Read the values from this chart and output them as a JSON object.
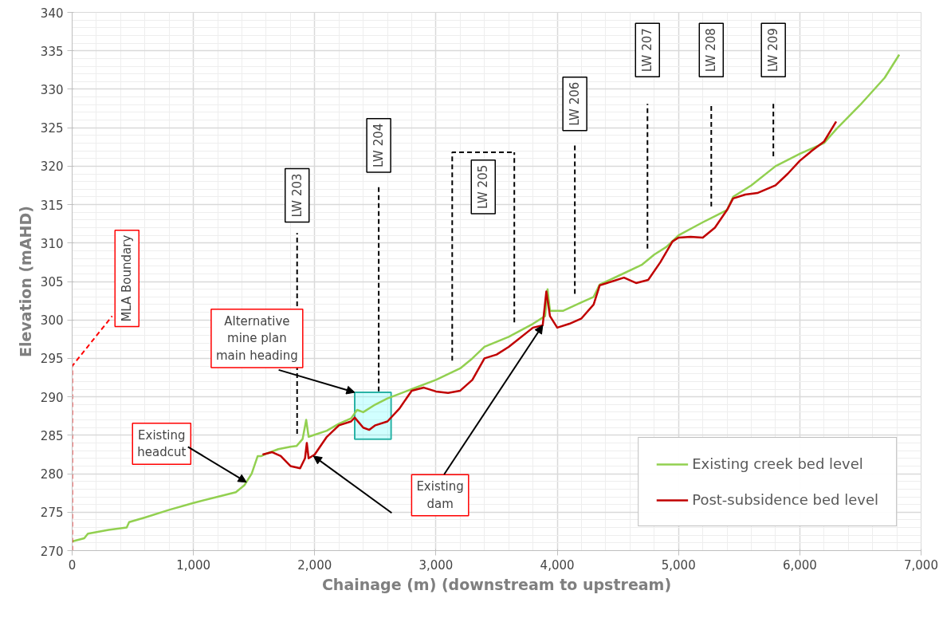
{
  "chart_data": {
    "type": "line",
    "xlabel": "Chainage (m) (downstream to upstream)",
    "ylabel": "Elevation (mAHD)",
    "xlim": [
      0,
      7000
    ],
    "ylim": [
      270,
      340
    ],
    "xticks": [
      {
        "value": 0,
        "label": "0"
      },
      {
        "value": 1000,
        "label": "1,000"
      },
      {
        "value": 2000,
        "label": "2,000"
      },
      {
        "value": 3000,
        "label": "3,000"
      },
      {
        "value": 4000,
        "label": "4,000"
      },
      {
        "value": 5000,
        "label": "5,000"
      },
      {
        "value": 6000,
        "label": "6,000"
      },
      {
        "value": 7000,
        "label": "7,000"
      }
    ],
    "yticks": [
      270,
      275,
      280,
      285,
      290,
      295,
      300,
      305,
      310,
      315,
      320,
      325,
      330,
      335,
      340
    ],
    "grid": true,
    "legend": "bottom right",
    "line_style": "solid",
    "marker": "none",
    "series": [
      {
        "name": "Existing creek bed level",
        "color": "#92d050",
        "x": [
          0,
          100,
          130,
          300,
          450,
          470,
          600,
          800,
          1000,
          1200,
          1350,
          1420,
          1480,
          1530,
          1560,
          1600,
          1700,
          1800,
          1850,
          1900,
          1930,
          1950,
          2100,
          2200,
          2300,
          2350,
          2400,
          2500,
          2600,
          2800,
          3000,
          3200,
          3300,
          3400,
          3600,
          3800,
          3900,
          3920,
          3940,
          4050,
          4200,
          4300,
          4350,
          4500,
          4700,
          4800,
          4900,
          5000,
          5200,
          5300,
          5400,
          5450,
          5600,
          5800,
          6000,
          6200,
          6300,
          6500,
          6700,
          6820
        ],
        "values": [
          271.2,
          271.6,
          272.2,
          272.7,
          273.0,
          273.7,
          274.3,
          275.3,
          276.2,
          277.0,
          277.6,
          278.5,
          280.0,
          282.3,
          282.3,
          282.6,
          283.2,
          283.5,
          283.6,
          284.5,
          287.0,
          284.8,
          285.6,
          286.5,
          287.2,
          288.3,
          288.0,
          289.0,
          289.8,
          291.0,
          292.2,
          293.7,
          295.0,
          296.5,
          297.8,
          299.5,
          300.5,
          304.0,
          301.2,
          301.2,
          302.3,
          303.0,
          304.6,
          305.7,
          307.2,
          308.5,
          309.5,
          311.0,
          312.7,
          313.5,
          314.3,
          316.0,
          317.5,
          320.0,
          321.6,
          323.0,
          324.8,
          328.0,
          331.5,
          334.5
        ]
      },
      {
        "name": "Post-subsidence bed level",
        "color": "#c00000",
        "x": [
          1570,
          1650,
          1720,
          1800,
          1880,
          1920,
          1935,
          1950,
          2000,
          2100,
          2200,
          2300,
          2330,
          2400,
          2450,
          2500,
          2600,
          2700,
          2800,
          2900,
          3000,
          3100,
          3200,
          3300,
          3400,
          3500,
          3600,
          3800,
          3880,
          3910,
          3940,
          4000,
          4100,
          4200,
          4300,
          4350,
          4450,
          4550,
          4650,
          4750,
          4850,
          4950,
          5000,
          5100,
          5200,
          5300,
          5400,
          5450,
          5550,
          5650,
          5800,
          5900,
          6000,
          6100,
          6200,
          6300
        ],
        "values": [
          282.5,
          282.8,
          282.3,
          281.0,
          280.7,
          282.0,
          284.0,
          282.0,
          282.5,
          284.8,
          286.3,
          286.8,
          287.3,
          286.0,
          285.7,
          286.3,
          286.8,
          288.5,
          290.8,
          291.2,
          290.7,
          290.5,
          290.8,
          292.2,
          295.0,
          295.5,
          296.5,
          299.0,
          299.3,
          303.7,
          300.5,
          299.0,
          299.5,
          300.2,
          302.0,
          304.5,
          305.0,
          305.5,
          304.8,
          305.2,
          307.5,
          310.2,
          310.7,
          310.8,
          310.7,
          312.0,
          314.3,
          315.8,
          316.3,
          316.5,
          317.5,
          319.0,
          320.7,
          322.0,
          323.2,
          325.8
        ]
      }
    ],
    "ref_lines": [
      {
        "axis": "x",
        "value": 0,
        "label": "MLA Boundary",
        "color": "#ff0000",
        "line_style": "dashed"
      },
      {
        "axis": "x",
        "value": 1855,
        "label": "LW 203",
        "color": "#000000",
        "line_style": "dashed"
      },
      {
        "axis": "x",
        "value": 2528,
        "label": "LW 204",
        "color": "#000000",
        "line_style": "dashed"
      },
      {
        "axis": "x",
        "value": 3134,
        "label": "LW 205",
        "color": "#000000",
        "line_style": "dashed"
      },
      {
        "axis": "x",
        "value": 3646,
        "label": null,
        "color": "#000000",
        "line_style": "dashed"
      },
      {
        "axis": "x",
        "value": 4145,
        "label": "LW 206",
        "color": "#000000",
        "line_style": "dashed"
      },
      {
        "axis": "x",
        "value": 4744,
        "label": "LW 207",
        "color": "#000000",
        "line_style": "dashed"
      },
      {
        "axis": "x",
        "value": 5270,
        "label": "LW 208",
        "color": "#000000",
        "line_style": "dashed"
      },
      {
        "axis": "x",
        "value": 5782,
        "label": "LW 209",
        "color": "#000000",
        "line_style": "dashed"
      }
    ],
    "bands": [
      {
        "axis": "x",
        "from": 2330,
        "to": 2630,
        "label": "Alternative\nmine plan\nmain heading",
        "color": "#66ffff"
      }
    ],
    "annotations": [
      {
        "text": "Existing\nheadcut",
        "x": 1437,
        "y": 278.9
      },
      {
        "text": "Existing\ndam",
        "x": 3880,
        "y": 299.3
      }
    ]
  }
}
